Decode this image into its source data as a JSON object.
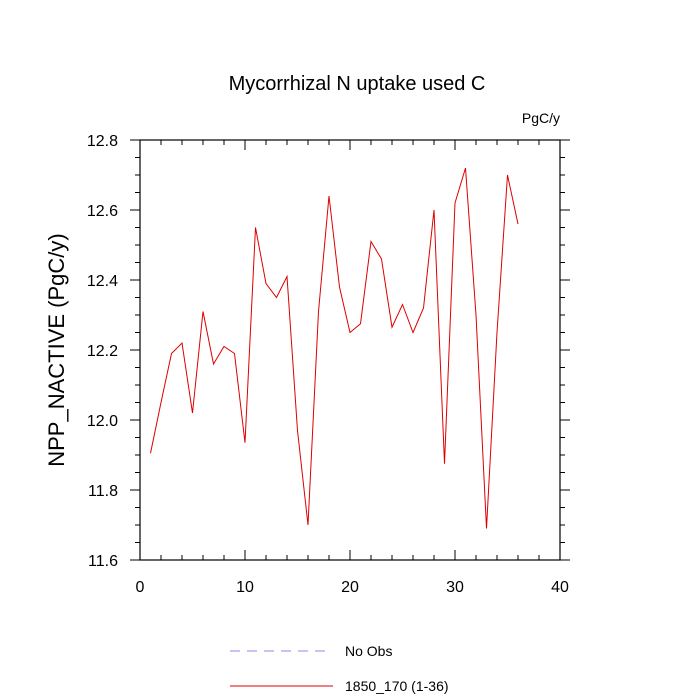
{
  "chart_data": {
    "type": "line",
    "title": "Mycorrhizal N uptake used C",
    "units_label": "PgC/y",
    "ylabel": "NPP_NACTIVE  (PgC/y)",
    "xlabel": "",
    "xlim": [
      0,
      40
    ],
    "ylim": [
      11.6,
      12.8
    ],
    "xticks": [
      0,
      10,
      20,
      30,
      40
    ],
    "xtick_labels": [
      "0",
      "10",
      "20",
      "30",
      "40"
    ],
    "yticks": [
      11.6,
      11.8,
      12.0,
      12.2,
      12.4,
      12.6,
      12.8
    ],
    "ytick_labels": [
      "11.6",
      "11.8",
      "12.0",
      "12.2",
      "12.4",
      "12.6",
      "12.8"
    ],
    "grid": false,
    "legend_position": "bottom-center",
    "series": [
      {
        "name": "No Obs",
        "color": "#8a8af0",
        "dash": "dashed",
        "x": [],
        "y": []
      },
      {
        "name": "1850_170 (1-36)",
        "color": "#dd0000",
        "dash": "solid",
        "x": [
          1,
          2,
          3,
          4,
          5,
          6,
          7,
          8,
          9,
          10,
          11,
          12,
          13,
          14,
          15,
          16,
          17,
          18,
          19,
          20,
          21,
          22,
          23,
          24,
          25,
          26,
          27,
          28,
          29,
          30,
          31,
          32,
          33,
          34,
          35,
          36
        ],
        "y": [
          11.905,
          12.05,
          12.19,
          12.22,
          12.02,
          12.31,
          12.16,
          12.21,
          12.19,
          11.935,
          12.55,
          12.39,
          12.35,
          12.41,
          11.97,
          11.7,
          12.31,
          12.64,
          12.38,
          12.25,
          12.275,
          12.51,
          12.46,
          12.265,
          12.33,
          12.25,
          12.32,
          12.6,
          11.875,
          12.62,
          12.72,
          12.3,
          11.69,
          12.25,
          12.7,
          12.56
        ]
      }
    ]
  }
}
